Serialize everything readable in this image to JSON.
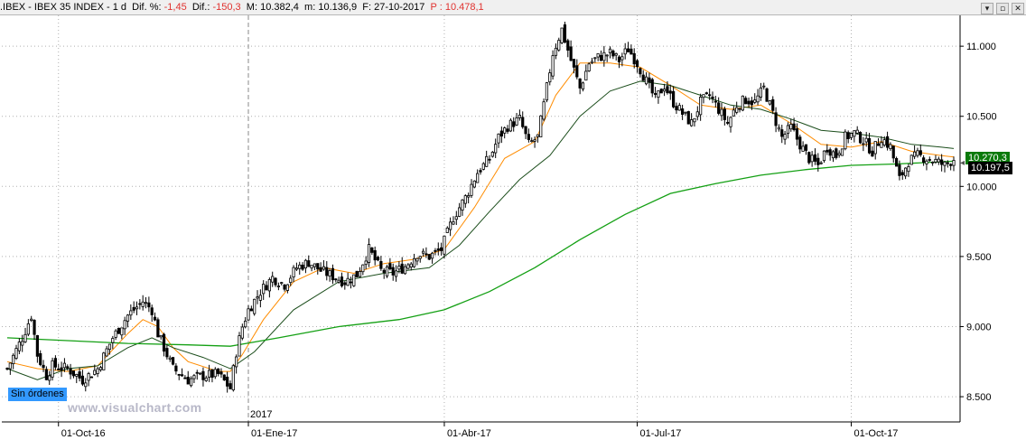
{
  "header": {
    "symbol": ".IBEX",
    "name": "IBEX 35 INDEX",
    "timeframe": "1 d",
    "dif_pct_label": "Dif. %:",
    "dif_pct_value": "-1,45",
    "dif_label": "Dif.:",
    "dif_value": "-150,3",
    "max_label": "M:",
    "max_value": "10.382,4",
    "min_label": "m:",
    "min_value": "10.136,9",
    "date_label": "F:",
    "date_value": "27-10-2017",
    "price_label": "P :",
    "price_value": "10.478,1",
    "window_buttons": [
      "▾",
      "▫",
      "✕"
    ]
  },
  "overlay": {
    "orders_label": "Sin órdenes",
    "watermark": "www.visualchart.com",
    "year_marker": "2017",
    "price_sma_label": "10.270,3",
    "price_last_label": "10.197,5"
  },
  "colors": {
    "candle": "#000000",
    "ma_fast": "#ff8c00",
    "ma_mid": "#1b4d1b",
    "ma_slow": "#14a014",
    "grid": "#b0b0b0",
    "negative_text": "#e0322f"
  },
  "chart_data": {
    "type": "candlestick",
    "title": "IBEX 35 INDEX",
    "yticks": [
      8.5,
      9.0,
      9.5,
      10.0,
      10.5,
      11.0
    ],
    "ytick_labels": [
      "8.500",
      "9.000",
      "9.500",
      "10.000",
      "10.500",
      "11.000"
    ],
    "xtick_labels": [
      "01-Oct-16",
      "01-Ene-17",
      "01-Abr-17",
      "01-Jul-17",
      "01-Oct-17"
    ],
    "ylim": [
      8.32,
      11.22
    ],
    "grid": true,
    "series": [
      {
        "name": "close",
        "points": [
          [
            0,
            8.7
          ],
          [
            5,
            8.92
          ],
          [
            8,
            9.08
          ],
          [
            10,
            8.8
          ],
          [
            13,
            8.65
          ],
          [
            15,
            8.72
          ],
          [
            20,
            8.7
          ],
          [
            25,
            8.62
          ],
          [
            30,
            8.7
          ],
          [
            35,
            8.92
          ],
          [
            40,
            9.08
          ],
          [
            45,
            9.18
          ],
          [
            48,
            9.12
          ],
          [
            50,
            8.95
          ],
          [
            52,
            8.85
          ],
          [
            55,
            8.7
          ],
          [
            60,
            8.62
          ],
          [
            65,
            8.65
          ],
          [
            70,
            8.66
          ],
          [
            74,
            8.56
          ],
          [
            76,
            8.82
          ],
          [
            78,
            9.0
          ],
          [
            80,
            9.12
          ],
          [
            84,
            9.25
          ],
          [
            88,
            9.35
          ],
          [
            92,
            9.3
          ],
          [
            96,
            9.42
          ],
          [
            100,
            9.46
          ],
          [
            104,
            9.4
          ],
          [
            108,
            9.36
          ],
          [
            112,
            9.32
          ],
          [
            116,
            9.37
          ],
          [
            120,
            9.55
          ],
          [
            124,
            9.4
          ],
          [
            128,
            9.38
          ],
          [
            132,
            9.43
          ],
          [
            136,
            9.52
          ],
          [
            140,
            9.5
          ],
          [
            144,
            9.55
          ],
          [
            148,
            9.78
          ],
          [
            152,
            9.92
          ],
          [
            156,
            10.1
          ],
          [
            160,
            10.2
          ],
          [
            163,
            10.35
          ],
          [
            166,
            10.43
          ],
          [
            170,
            10.48
          ],
          [
            173,
            10.3
          ],
          [
            176,
            10.35
          ],
          [
            178,
            10.58
          ],
          [
            181,
            10.95
          ],
          [
            184,
            11.12
          ],
          [
            187,
            10.9
          ],
          [
            190,
            10.7
          ],
          [
            193,
            10.88
          ],
          [
            196,
            10.92
          ],
          [
            200,
            10.95
          ],
          [
            203,
            10.9
          ],
          [
            206,
            10.98
          ],
          [
            209,
            10.88
          ],
          [
            212,
            10.75
          ],
          [
            215,
            10.62
          ],
          [
            218,
            10.72
          ],
          [
            221,
            10.6
          ],
          [
            224,
            10.52
          ],
          [
            227,
            10.45
          ],
          [
            230,
            10.6
          ],
          [
            233,
            10.65
          ],
          [
            236,
            10.55
          ],
          [
            239,
            10.45
          ],
          [
            242,
            10.58
          ],
          [
            245,
            10.62
          ],
          [
            248,
            10.6
          ],
          [
            251,
            10.7
          ],
          [
            254,
            10.52
          ],
          [
            257,
            10.35
          ],
          [
            260,
            10.42
          ],
          [
            263,
            10.3
          ],
          [
            266,
            10.2
          ],
          [
            269,
            10.15
          ],
          [
            272,
            10.28
          ],
          [
            275,
            10.22
          ],
          [
            278,
            10.35
          ],
          [
            281,
            10.38
          ],
          [
            284,
            10.33
          ],
          [
            287,
            10.25
          ],
          [
            290,
            10.35
          ],
          [
            293,
            10.28
          ],
          [
            296,
            10.05
          ],
          [
            299,
            10.18
          ],
          [
            302,
            10.22
          ],
          [
            305,
            10.2
          ],
          [
            308,
            10.18
          ],
          [
            311,
            10.15
          ],
          [
            314,
            10.197
          ]
        ]
      },
      {
        "name": "ma_fast",
        "points": [
          [
            0,
            8.75
          ],
          [
            10,
            8.7
          ],
          [
            20,
            8.68
          ],
          [
            30,
            8.72
          ],
          [
            40,
            8.95
          ],
          [
            45,
            9.05
          ],
          [
            50,
            9.0
          ],
          [
            55,
            8.85
          ],
          [
            60,
            8.75
          ],
          [
            70,
            8.68
          ],
          [
            74,
            8.68
          ],
          [
            78,
            8.8
          ],
          [
            85,
            9.05
          ],
          [
            95,
            9.32
          ],
          [
            105,
            9.42
          ],
          [
            115,
            9.38
          ],
          [
            125,
            9.45
          ],
          [
            135,
            9.48
          ],
          [
            145,
            9.55
          ],
          [
            155,
            9.85
          ],
          [
            165,
            10.2
          ],
          [
            175,
            10.32
          ],
          [
            182,
            10.65
          ],
          [
            190,
            10.88
          ],
          [
            200,
            10.88
          ],
          [
            210,
            10.85
          ],
          [
            220,
            10.72
          ],
          [
            230,
            10.58
          ],
          [
            240,
            10.55
          ],
          [
            250,
            10.58
          ],
          [
            260,
            10.45
          ],
          [
            270,
            10.3
          ],
          [
            280,
            10.28
          ],
          [
            290,
            10.32
          ],
          [
            300,
            10.25
          ],
          [
            310,
            10.22
          ],
          [
            314,
            10.21
          ]
        ]
      },
      {
        "name": "ma_mid",
        "points": [
          [
            0,
            8.7
          ],
          [
            10,
            8.62
          ],
          [
            20,
            8.7
          ],
          [
            30,
            8.72
          ],
          [
            40,
            8.85
          ],
          [
            48,
            8.92
          ],
          [
            55,
            8.85
          ],
          [
            65,
            8.78
          ],
          [
            74,
            8.7
          ],
          [
            82,
            8.82
          ],
          [
            95,
            9.12
          ],
          [
            110,
            9.32
          ],
          [
            125,
            9.38
          ],
          [
            140,
            9.42
          ],
          [
            150,
            9.58
          ],
          [
            160,
            9.82
          ],
          [
            170,
            10.05
          ],
          [
            180,
            10.22
          ],
          [
            190,
            10.5
          ],
          [
            200,
            10.68
          ],
          [
            210,
            10.75
          ],
          [
            220,
            10.72
          ],
          [
            230,
            10.65
          ],
          [
            240,
            10.58
          ],
          [
            250,
            10.55
          ],
          [
            260,
            10.48
          ],
          [
            270,
            10.4
          ],
          [
            280,
            10.38
          ],
          [
            290,
            10.35
          ],
          [
            300,
            10.3
          ],
          [
            310,
            10.28
          ],
          [
            314,
            10.27
          ]
        ]
      },
      {
        "name": "ma_slow",
        "points": [
          [
            0,
            8.92
          ],
          [
            20,
            8.9
          ],
          [
            40,
            8.88
          ],
          [
            60,
            8.87
          ],
          [
            74,
            8.86
          ],
          [
            90,
            8.92
          ],
          [
            110,
            9.0
          ],
          [
            130,
            9.05
          ],
          [
            145,
            9.12
          ],
          [
            160,
            9.25
          ],
          [
            175,
            9.42
          ],
          [
            190,
            9.62
          ],
          [
            205,
            9.8
          ],
          [
            220,
            9.95
          ],
          [
            235,
            10.02
          ],
          [
            250,
            10.08
          ],
          [
            265,
            10.12
          ],
          [
            280,
            10.15
          ],
          [
            295,
            10.16
          ],
          [
            314,
            10.18
          ]
        ]
      }
    ]
  }
}
